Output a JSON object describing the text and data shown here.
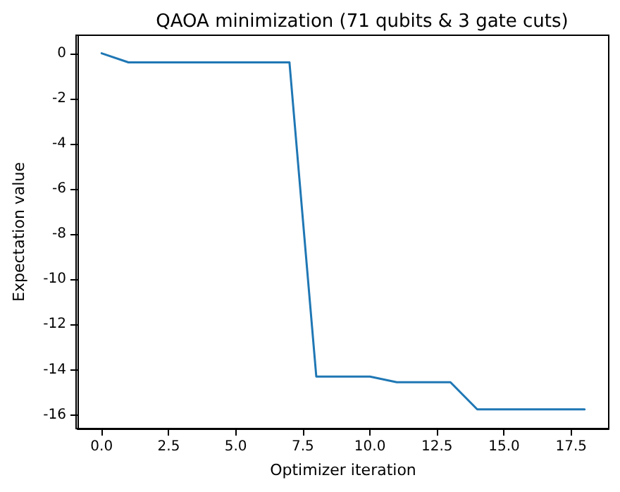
{
  "chart_data": {
    "type": "line",
    "title": "QAOA minimization (71 qubits & 3 gate cuts)",
    "xlabel": "Optimizer iteration",
    "ylabel": "Expectation value",
    "x": [
      0,
      1,
      2,
      3,
      4,
      5,
      6,
      7,
      8,
      9,
      10,
      11,
      12,
      13,
      14,
      15,
      16,
      17,
      18
    ],
    "series": [
      {
        "color": "#1f77b4",
        "values": [
          0,
          -0.4,
          -0.4,
          -0.4,
          -0.4,
          -0.4,
          -0.4,
          -0.4,
          -14.3,
          -14.3,
          -14.3,
          -14.55,
          -14.55,
          -14.55,
          -15.75,
          -15.75,
          -15.75,
          -15.75,
          -15.75
        ]
      }
    ],
    "xlim": [
      -0.9,
      18.9
    ],
    "xticks": [
      {
        "value": 0,
        "label": "0.0"
      },
      {
        "value": 2.5,
        "label": "2.5"
      },
      {
        "value": 5,
        "label": "5.0"
      },
      {
        "value": 7.5,
        "label": "7.5"
      },
      {
        "value": 10,
        "label": "10.0"
      },
      {
        "value": 12.5,
        "label": "12.5"
      },
      {
        "value": 15,
        "label": "15.0"
      },
      {
        "value": 17.5,
        "label": "17.5"
      }
    ],
    "ylim": [
      -16.6,
      0.8
    ],
    "yticks": [
      -16,
      -14,
      -12,
      -10,
      -8,
      -6,
      -4,
      -2,
      0
    ],
    "marker": "none",
    "line_style": "solid"
  }
}
